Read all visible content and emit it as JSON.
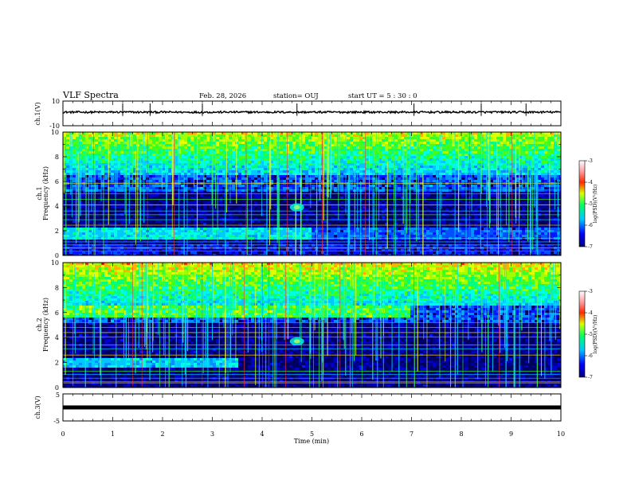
{
  "header": {
    "title": "VLF Spectra",
    "date": "Feb. 28, 2026",
    "station": "station= OUJ",
    "start": "start  UT =  5 : 30 : 0"
  },
  "chart_data": [
    {
      "type": "line",
      "name": "ch1-waveform",
      "ylabel": "ch.1(V)",
      "ylim": [
        -10,
        10
      ],
      "ytick_labels": [
        "10",
        "-10"
      ],
      "baseline": 1.0,
      "spikes_min": [
        1.2,
        1.75,
        2.8,
        4.7,
        7.05,
        8.4,
        9.3
      ],
      "xlim": [
        0,
        10
      ]
    },
    {
      "type": "heatmap",
      "name": "ch1-spectrogram",
      "ylabel": "ch.1\nFrequency (kHz)",
      "ylim": [
        0,
        10
      ],
      "ytick_labels": [
        "0",
        "2",
        "4",
        "6",
        "8",
        "10"
      ],
      "xlim": [
        0,
        10
      ],
      "colorbar": {
        "label": "log(PSD)(V²/Hz)",
        "range": [
          -7,
          -3
        ],
        "tick_labels": [
          "-3",
          "-4",
          "-5",
          "-6",
          "-7"
        ]
      },
      "features": {
        "hiss_band_khz": [
          1.3,
          2.3
        ],
        "event_time_min": 4.7,
        "event_freq_khz": 3.9
      }
    },
    {
      "type": "heatmap",
      "name": "ch2-spectrogram",
      "ylabel": "ch.2\nFrequency (kHz)",
      "ylim": [
        0,
        10
      ],
      "ytick_labels": [
        "0",
        "2",
        "4",
        "6",
        "8",
        "10"
      ],
      "xlim": [
        0,
        10
      ],
      "colorbar": {
        "label": "log(PSD)(V²/Hz)",
        "range": [
          -7,
          -3
        ],
        "tick_labels": [
          "-3",
          "-4",
          "-5",
          "-6",
          "-7"
        ]
      },
      "features": {
        "band_6khz_span_min": [
          0,
          7.0
        ],
        "event_time_min": 4.7,
        "event_freq_khz": 3.7
      }
    },
    {
      "type": "line",
      "name": "ch3-waveform",
      "ylabel": "ch.3(V)",
      "ylim": [
        -5,
        5
      ],
      "ytick_labels": [
        "5",
        "-5"
      ],
      "baseline": 0.0,
      "xlim": [
        0,
        10
      ]
    }
  ],
  "xaxis": {
    "label": "Time  (min)",
    "tick_labels": [
      "0",
      "1",
      "2",
      "3",
      "4",
      "5",
      "6",
      "7",
      "8",
      "9",
      "10"
    ]
  }
}
